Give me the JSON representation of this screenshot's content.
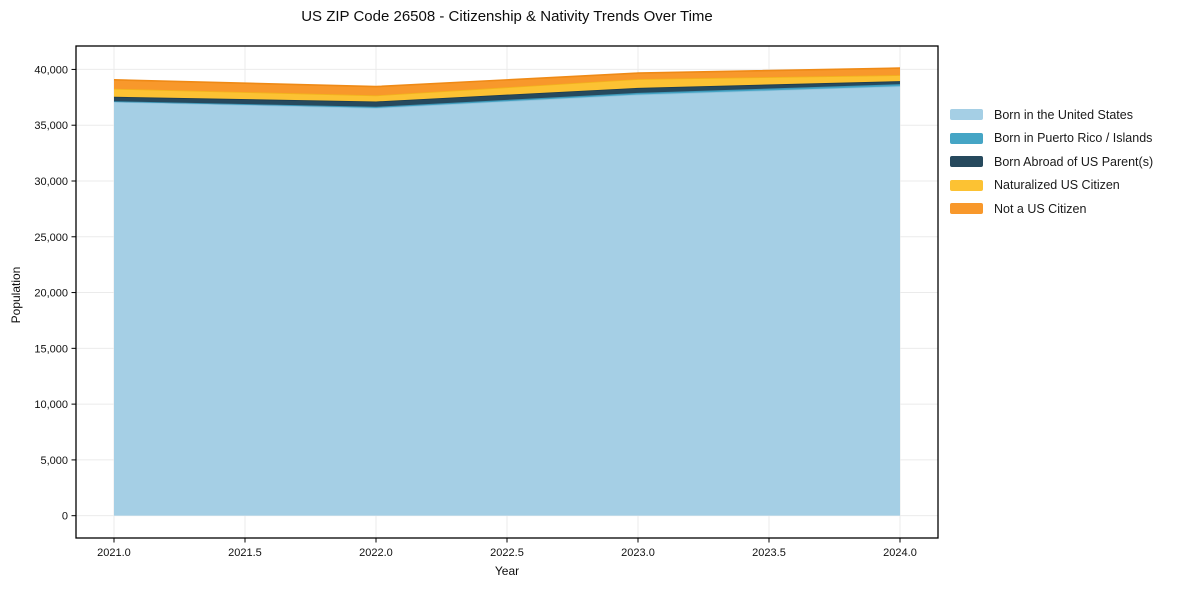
{
  "title": "US ZIP Code 26508 - Citizenship & Nativity Trends Over Time",
  "chart_data": {
    "type": "area",
    "stacked": true,
    "title": "US ZIP Code 26508 - Citizenship & Nativity Trends Over Time",
    "xlabel": "Year",
    "ylabel": "Population",
    "x": [
      2021,
      2022,
      2023,
      2024
    ],
    "series": [
      {
        "name": "Born in the United States",
        "color": "#a5cfe5",
        "edge": "#8fc2dc",
        "values": [
          37100,
          36550,
          37750,
          38500
        ]
      },
      {
        "name": "Born in Puerto Rico / Islands",
        "color": "#45a5c5",
        "edge": "#3b94b4",
        "values": [
          50,
          100,
          150,
          180
        ]
      },
      {
        "name": "Born Abroad of US Parent(s)",
        "color": "#26495d",
        "edge": "#1e3c4e",
        "values": [
          400,
          480,
          450,
          270
        ]
      },
      {
        "name": "Naturalized US Citizen",
        "color": "#fcc233",
        "edge": "#f2b31c",
        "values": [
          720,
          540,
          780,
          540
        ]
      },
      {
        "name": "Not a US Citizen",
        "color": "#f8982b",
        "edge": "#ef8a16",
        "values": [
          800,
          790,
          540,
          630
        ]
      }
    ],
    "xlim": [
      2020.855,
      2024.145
    ],
    "ylim": [
      -2000,
      42100
    ],
    "x_ticks": [
      "2021.0",
      "2021.5",
      "2022.0",
      "2022.5",
      "2023.0",
      "2023.5",
      "2024.0"
    ],
    "x_tick_values": [
      2021.0,
      2021.5,
      2022.0,
      2022.5,
      2023.0,
      2023.5,
      2024.0
    ],
    "y_ticks": [
      "0",
      "5,000",
      "10,000",
      "15,000",
      "20,000",
      "25,000",
      "30,000",
      "35,000",
      "40,000"
    ],
    "y_tick_values": [
      0,
      5000,
      10000,
      15000,
      20000,
      25000,
      30000,
      35000,
      40000
    ],
    "grid": true,
    "grid_color": "#ebebeb",
    "frame_color": "#000000",
    "legend_position": "right-outside"
  }
}
